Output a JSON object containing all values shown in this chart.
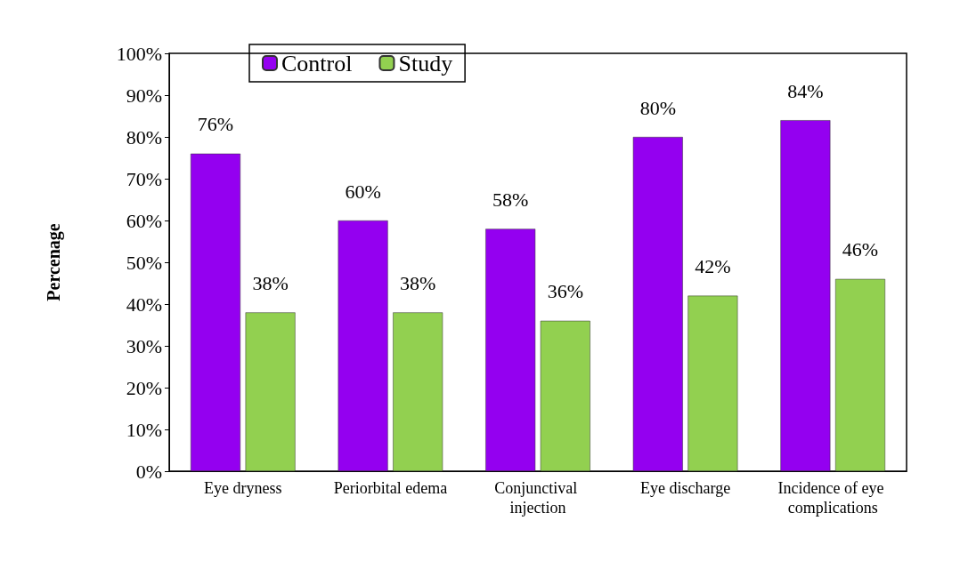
{
  "chart_data": {
    "type": "bar",
    "ylabel": "Percenage",
    "categories": [
      "Eye dryness",
      "Periorbital edema",
      "Conjunctival injection",
      "Eye discharge",
      "Incidence of eye complications"
    ],
    "series": [
      {
        "name": "Control",
        "color": "#9400f0",
        "values": [
          76,
          60,
          58,
          80,
          84
        ],
        "value_labels": [
          "76%",
          "60%",
          "58%",
          "80%",
          "84%"
        ]
      },
      {
        "name": "Study",
        "color": "#92d050",
        "values": [
          38,
          38,
          36,
          42,
          46
        ],
        "value_labels": [
          "38%",
          "38%",
          "36%",
          "42%",
          "46%"
        ]
      }
    ],
    "ylim": [
      0,
      100
    ],
    "yticks": [
      {
        "value": 0,
        "label": "0%"
      },
      {
        "value": 10,
        "label": "10%"
      },
      {
        "value": 20,
        "label": "20%"
      },
      {
        "value": 30,
        "label": "30%"
      },
      {
        "value": 40,
        "label": "40%"
      },
      {
        "value": 50,
        "label": "50%"
      },
      {
        "value": 60,
        "label": "60%"
      },
      {
        "value": 70,
        "label": "70%"
      },
      {
        "value": 80,
        "label": "80%"
      },
      {
        "value": 90,
        "label": "90%"
      },
      {
        "value": 100,
        "label": "100%"
      }
    ],
    "grid": false,
    "legend": "top left"
  }
}
